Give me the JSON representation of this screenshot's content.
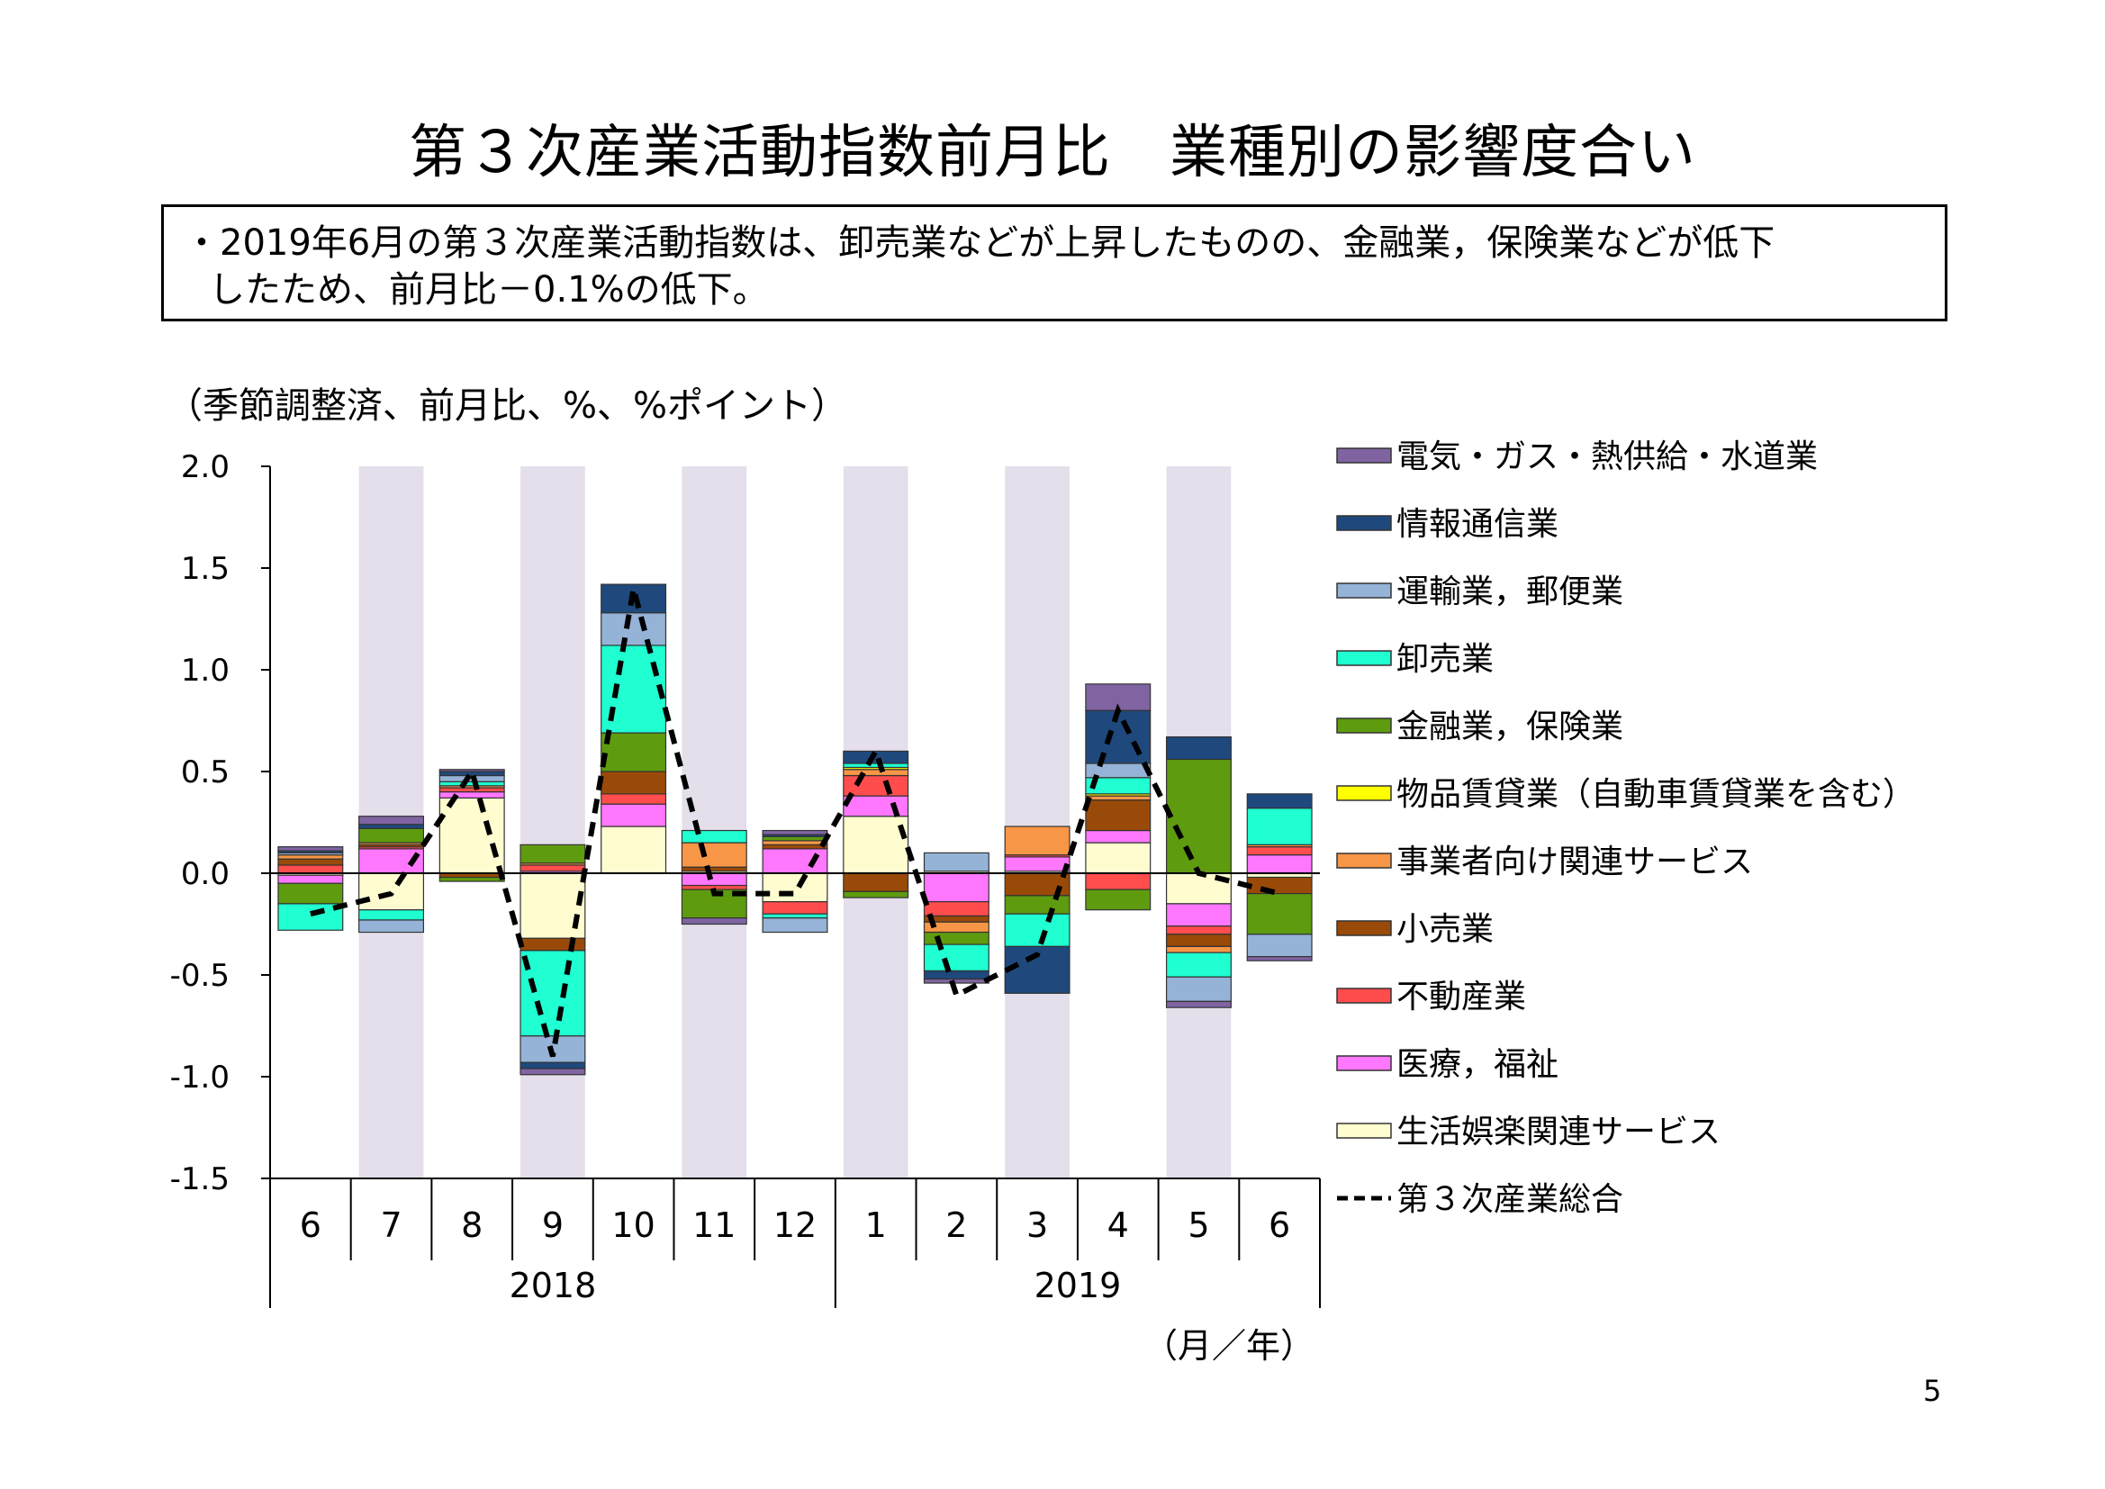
{
  "title": "第３次産業活動指数前月比　業種別の影響度合い",
  "summary": {
    "line1": "・2019年6月の第３次産業活動指数は、卸売業などが上昇したものの、金融業，保険業などが低下",
    "line2": "したため、前月比－0.1%の低下。"
  },
  "units_note": "（季節調整済、前月比、%、%ポイント）",
  "page_number": "5",
  "chart_data": {
    "type": "bar",
    "stacked": true,
    "months": [
      "6",
      "7",
      "8",
      "9",
      "10",
      "11",
      "12",
      "1",
      "2",
      "3",
      "4",
      "5",
      "6"
    ],
    "years": [
      {
        "label": "2018",
        "span": 7
      },
      {
        "label": "2019",
        "span": 6
      }
    ],
    "xlabel": "（月／年）",
    "ylim": [
      -1.5,
      2.0
    ],
    "yticks": [
      2.0,
      1.5,
      1.0,
      0.5,
      0.0,
      -0.5,
      -1.0,
      -1.5
    ],
    "ytick_labels": [
      "2.0",
      "1.5",
      "1.0",
      "0.5",
      "0.0",
      "-0.5",
      "-1.0",
      "-1.5"
    ],
    "shaded_columns": [
      1,
      3,
      5,
      7,
      9,
      11
    ],
    "shade_color": "#e4dfeb",
    "series": [
      {
        "name": "生活娯楽関連サービス",
        "color": "#fffdd0",
        "values": [
          -0.01,
          -0.18,
          0.37,
          -0.32,
          0.23,
          0.01,
          -0.14,
          0.28,
          0.01,
          0.01,
          0.15,
          -0.15,
          -0.02
        ]
      },
      {
        "name": "医療，福祉",
        "color": "#ff77ff",
        "values": [
          -0.04,
          0.12,
          0.03,
          0.01,
          0.11,
          -0.06,
          0.12,
          0.1,
          -0.14,
          0.07,
          0.06,
          -0.11,
          0.09
        ]
      },
      {
        "name": "不動産業",
        "color": "#ff4d4d",
        "values": [
          0.04,
          0.01,
          0.02,
          0.03,
          0.05,
          -0.02,
          -0.06,
          0.1,
          -0.07,
          0.01,
          -0.08,
          -0.04,
          0.04
        ]
      },
      {
        "name": "小売業",
        "color": "#9a4a08",
        "values": [
          0.03,
          0.01,
          -0.02,
          -0.06,
          0.11,
          0.02,
          0.02,
          -0.09,
          -0.03,
          -0.11,
          0.15,
          -0.06,
          -0.08
        ]
      },
      {
        "name": "事業者向け関連サービス",
        "color": "#f79646",
        "values": [
          0.02,
          0.01,
          0.01,
          0.01,
          0.0,
          0.12,
          0.02,
          0.03,
          -0.05,
          0.14,
          0.02,
          -0.03,
          0.01
        ]
      },
      {
        "name": "物品賃貸業（自動車賃貸業を含む）",
        "color": "#ffff00",
        "values": [
          0.0,
          0.0,
          0.0,
          0.0,
          0.0,
          0.0,
          0.0,
          0.01,
          0.0,
          0.0,
          0.01,
          0.0,
          0.0
        ]
      },
      {
        "name": "金融業，保険業",
        "color": "#5f9b0f",
        "values": [
          -0.1,
          0.07,
          -0.02,
          0.09,
          0.19,
          -0.14,
          0.02,
          -0.03,
          -0.06,
          -0.09,
          -0.1,
          0.56,
          -0.2
        ]
      },
      {
        "name": "卸売業",
        "color": "#1fffd2",
        "values": [
          -0.13,
          -0.05,
          0.02,
          -0.42,
          0.43,
          0.06,
          -0.02,
          0.02,
          -0.13,
          -0.16,
          0.08,
          -0.12,
          0.18
        ]
      },
      {
        "name": "運輸業，郵便業",
        "color": "#95b3d7",
        "values": [
          0.01,
          -0.06,
          0.03,
          -0.13,
          0.16,
          0.0,
          -0.07,
          0.0,
          0.09,
          0.0,
          0.07,
          -0.12,
          -0.11
        ]
      },
      {
        "name": "情報通信業",
        "color": "#1f497d",
        "values": [
          0.01,
          0.02,
          0.02,
          -0.03,
          0.14,
          0.0,
          0.01,
          0.06,
          -0.04,
          -0.23,
          0.26,
          0.11,
          0.07
        ]
      },
      {
        "name": "電気・ガス・熱供給・水道業",
        "color": "#8064a2",
        "values": [
          0.02,
          0.04,
          0.01,
          -0.03,
          0.0,
          -0.03,
          0.02,
          0.0,
          -0.02,
          0.0,
          0.13,
          -0.03,
          -0.02
        ]
      }
    ],
    "total": {
      "name": "第３次産業総合",
      "color": "#000000",
      "values": [
        -0.2,
        -0.1,
        0.5,
        -0.9,
        1.4,
        -0.1,
        -0.1,
        0.6,
        -0.6,
        -0.4,
        0.8,
        0.0,
        -0.1
      ]
    }
  }
}
